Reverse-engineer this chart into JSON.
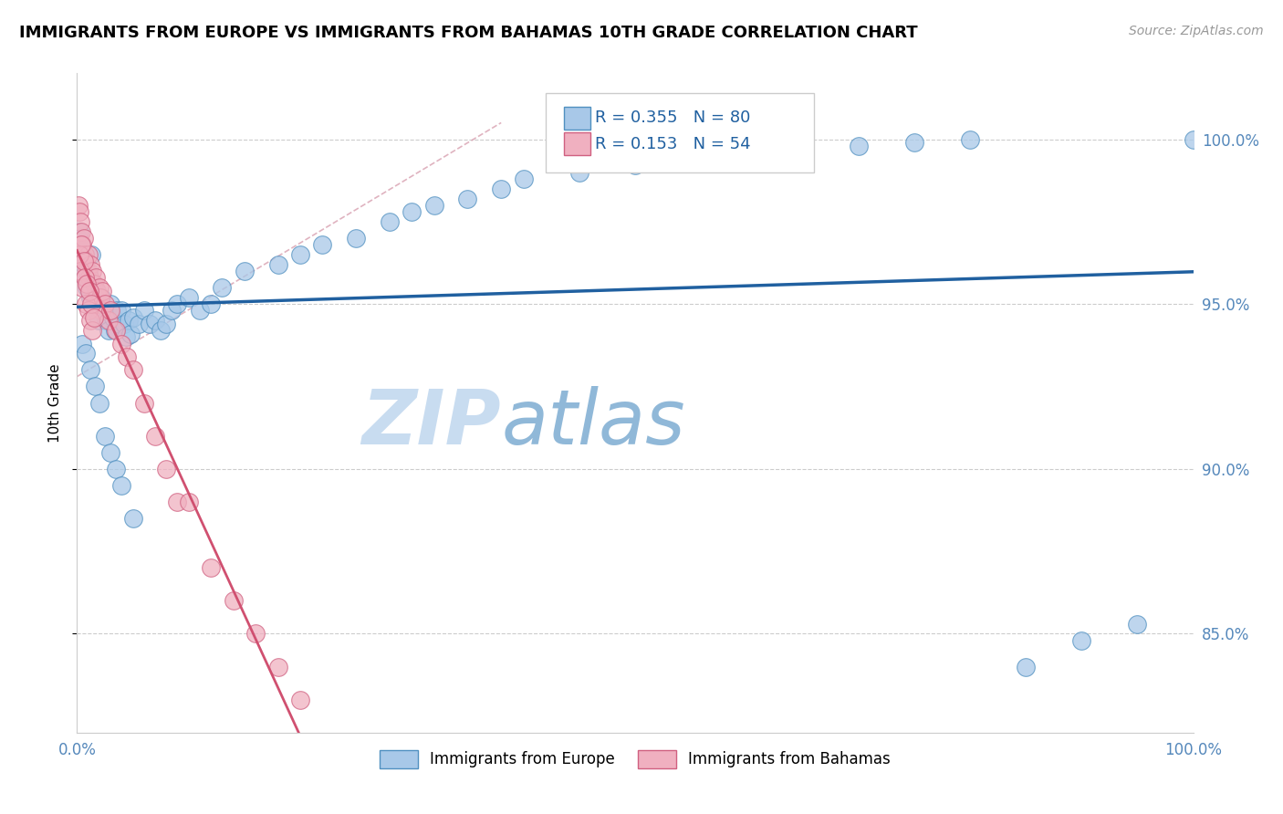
{
  "title": "IMMIGRANTS FROM EUROPE VS IMMIGRANTS FROM BAHAMAS 10TH GRADE CORRELATION CHART",
  "source": "Source: ZipAtlas.com",
  "ylabel": "10th Grade",
  "legend_blue_r": "R = 0.355",
  "legend_blue_n": "N = 80",
  "legend_pink_r": "R = 0.153",
  "legend_pink_n": "N = 54",
  "blue_color": "#A8C8E8",
  "blue_edge_color": "#5090C0",
  "pink_color": "#F0B0C0",
  "pink_edge_color": "#D06080",
  "blue_line_color": "#2060A0",
  "pink_line_color": "#D05070",
  "dash_color": "#D8A0B0",
  "watermark_zip": "ZIP",
  "watermark_atlas": "atlas",
  "watermark_color_zip": "#C8DCF0",
  "watermark_color_atlas": "#90B8D8",
  "blue_scatter_x": [
    0.001,
    0.002,
    0.003,
    0.004,
    0.005,
    0.006,
    0.007,
    0.008,
    0.009,
    0.01,
    0.011,
    0.012,
    0.013,
    0.014,
    0.015,
    0.016,
    0.017,
    0.018,
    0.019,
    0.02,
    0.022,
    0.024,
    0.026,
    0.028,
    0.03,
    0.032,
    0.034,
    0.036,
    0.038,
    0.04,
    0.042,
    0.044,
    0.046,
    0.048,
    0.05,
    0.055,
    0.06,
    0.065,
    0.07,
    0.075,
    0.08,
    0.085,
    0.09,
    0.1,
    0.11,
    0.12,
    0.13,
    0.15,
    0.18,
    0.2,
    0.22,
    0.25,
    0.28,
    0.3,
    0.32,
    0.35,
    0.38,
    0.4,
    0.45,
    0.5,
    0.55,
    0.6,
    0.65,
    0.7,
    0.75,
    0.8,
    0.85,
    0.9,
    0.95,
    1.0,
    0.005,
    0.008,
    0.012,
    0.016,
    0.02,
    0.025,
    0.03,
    0.035,
    0.04,
    0.05
  ],
  "blue_scatter_y": [
    0.97,
    0.972,
    0.968,
    0.96,
    0.965,
    0.962,
    0.958,
    0.963,
    0.955,
    0.96,
    0.958,
    0.952,
    0.965,
    0.955,
    0.95,
    0.955,
    0.948,
    0.952,
    0.945,
    0.95,
    0.952,
    0.948,
    0.945,
    0.942,
    0.95,
    0.946,
    0.942,
    0.948,
    0.944,
    0.948,
    0.944,
    0.94,
    0.945,
    0.941,
    0.946,
    0.944,
    0.948,
    0.944,
    0.945,
    0.942,
    0.944,
    0.948,
    0.95,
    0.952,
    0.948,
    0.95,
    0.955,
    0.96,
    0.962,
    0.965,
    0.968,
    0.97,
    0.975,
    0.978,
    0.98,
    0.982,
    0.985,
    0.988,
    0.99,
    0.992,
    0.994,
    0.996,
    0.997,
    0.998,
    0.999,
    1.0,
    0.84,
    0.848,
    0.853,
    1.0,
    0.938,
    0.935,
    0.93,
    0.925,
    0.92,
    0.91,
    0.905,
    0.9,
    0.895,
    0.885
  ],
  "pink_scatter_x": [
    0.001,
    0.002,
    0.003,
    0.004,
    0.005,
    0.006,
    0.007,
    0.008,
    0.009,
    0.01,
    0.011,
    0.012,
    0.013,
    0.014,
    0.015,
    0.016,
    0.017,
    0.018,
    0.019,
    0.02,
    0.021,
    0.022,
    0.023,
    0.025,
    0.028,
    0.03,
    0.035,
    0.04,
    0.045,
    0.05,
    0.06,
    0.07,
    0.08,
    0.09,
    0.1,
    0.12,
    0.14,
    0.16,
    0.18,
    0.2,
    0.002,
    0.003,
    0.004,
    0.005,
    0.006,
    0.007,
    0.008,
    0.009,
    0.01,
    0.011,
    0.012,
    0.013,
    0.014,
    0.015
  ],
  "pink_scatter_y": [
    0.98,
    0.978,
    0.975,
    0.972,
    0.968,
    0.97,
    0.965,
    0.963,
    0.96,
    0.965,
    0.958,
    0.962,
    0.955,
    0.96,
    0.956,
    0.952,
    0.958,
    0.954,
    0.95,
    0.955,
    0.952,
    0.948,
    0.954,
    0.95,
    0.945,
    0.948,
    0.942,
    0.938,
    0.934,
    0.93,
    0.92,
    0.91,
    0.9,
    0.89,
    0.89,
    0.87,
    0.86,
    0.85,
    0.84,
    0.83,
    0.965,
    0.96,
    0.968,
    0.955,
    0.963,
    0.958,
    0.95,
    0.956,
    0.948,
    0.954,
    0.945,
    0.95,
    0.942,
    0.946
  ]
}
